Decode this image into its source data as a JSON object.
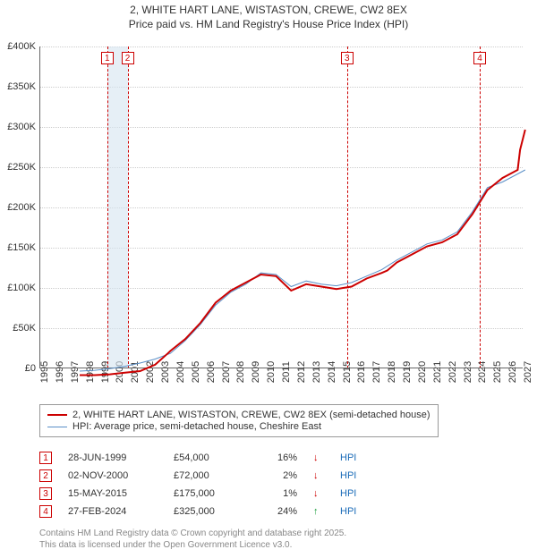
{
  "title_line1": "2, WHITE HART LANE, WISTASTON, CREWE, CW2 8EX",
  "title_line2": "Price paid vs. HM Land Registry's House Price Index (HPI)",
  "chart": {
    "type": "line",
    "background_color": "#ffffff",
    "grid_color": "#cccccc",
    "axis_color": "#666666",
    "xlim": [
      1995,
      2027
    ],
    "ylim": [
      0,
      400000
    ],
    "ytick_step": 50000,
    "ytick_labels": [
      "£0",
      "£50K",
      "£100K",
      "£150K",
      "£200K",
      "£250K",
      "£300K",
      "£350K",
      "£400K"
    ],
    "xtick_years": [
      1995,
      1996,
      1997,
      1998,
      1999,
      2000,
      2001,
      2002,
      2003,
      2004,
      2005,
      2006,
      2007,
      2008,
      2009,
      2010,
      2011,
      2012,
      2013,
      2014,
      2015,
      2016,
      2017,
      2018,
      2019,
      2020,
      2021,
      2022,
      2023,
      2024,
      2025,
      2026,
      2027
    ],
    "band": {
      "start": 1999.49,
      "end": 2000.84,
      "color": "#d6e4f0"
    },
    "markers": [
      {
        "n": "1",
        "x": 1999.49,
        "color": "#cc0000"
      },
      {
        "n": "2",
        "x": 2000.84,
        "color": "#cc0000"
      },
      {
        "n": "3",
        "x": 2015.37,
        "color": "#cc0000"
      },
      {
        "n": "4",
        "x": 2024.16,
        "color": "#cc0000"
      }
    ],
    "series_price": {
      "label": "2, WHITE HART LANE, WISTASTON, CREWE, CW2 8EX (semi-detached house)",
      "color": "#cc0000",
      "width": 2,
      "points": [
        [
          1995,
          45000
        ],
        [
          1996,
          45000
        ],
        [
          1997,
          46000
        ],
        [
          1998,
          48000
        ],
        [
          1999,
          50000
        ],
        [
          1999.49,
          54000
        ],
        [
          2000,
          58000
        ],
        [
          2000.84,
          72000
        ],
        [
          2001,
          75000
        ],
        [
          2002,
          90000
        ],
        [
          2003,
          110000
        ],
        [
          2004,
          135000
        ],
        [
          2005,
          150000
        ],
        [
          2006,
          160000
        ],
        [
          2007,
          170000
        ],
        [
          2008,
          168000
        ],
        [
          2009,
          150000
        ],
        [
          2010,
          158000
        ],
        [
          2011,
          155000
        ],
        [
          2012,
          152000
        ],
        [
          2013,
          155000
        ],
        [
          2014,
          165000
        ],
        [
          2015,
          172000
        ],
        [
          2015.37,
          175000
        ],
        [
          2016,
          185000
        ],
        [
          2017,
          195000
        ],
        [
          2018,
          205000
        ],
        [
          2019,
          210000
        ],
        [
          2020,
          220000
        ],
        [
          2021,
          245000
        ],
        [
          2022,
          275000
        ],
        [
          2023,
          290000
        ],
        [
          2024,
          300000
        ],
        [
          2024.16,
          325000
        ],
        [
          2024.5,
          350000
        ]
      ]
    },
    "series_hpi": {
      "label": "HPI: Average price, semi-detached house, Cheshire East",
      "color": "#5a8fc7",
      "width": 1,
      "points": [
        [
          1995,
          50000
        ],
        [
          1996,
          51000
        ],
        [
          1997,
          53000
        ],
        [
          1998,
          56000
        ],
        [
          1999,
          60000
        ],
        [
          2000,
          65000
        ],
        [
          2001,
          72000
        ],
        [
          2002,
          88000
        ],
        [
          2003,
          108000
        ],
        [
          2004,
          132000
        ],
        [
          2005,
          148000
        ],
        [
          2006,
          158000
        ],
        [
          2007,
          172000
        ],
        [
          2008,
          170000
        ],
        [
          2009,
          155000
        ],
        [
          2010,
          162000
        ],
        [
          2011,
          158000
        ],
        [
          2012,
          156000
        ],
        [
          2013,
          160000
        ],
        [
          2014,
          168000
        ],
        [
          2015,
          176000
        ],
        [
          2016,
          188000
        ],
        [
          2017,
          198000
        ],
        [
          2018,
          208000
        ],
        [
          2019,
          213000
        ],
        [
          2020,
          223000
        ],
        [
          2021,
          248000
        ],
        [
          2022,
          278000
        ],
        [
          2023,
          285000
        ],
        [
          2024,
          295000
        ],
        [
          2024.5,
          300000
        ]
      ]
    }
  },
  "legend": {
    "border_color": "#999999"
  },
  "table": {
    "hpi_label": "HPI",
    "hpi_color": "#1a6bb8",
    "arrow_up": "↑",
    "arrow_down": "↓",
    "arrow_up_color": "#1a9c3c",
    "arrow_down_color": "#cc0000",
    "rows": [
      {
        "n": "1",
        "date": "28-JUN-1999",
        "price": "£54,000",
        "pct": "16%",
        "dir": "down"
      },
      {
        "n": "2",
        "date": "02-NOV-2000",
        "price": "£72,000",
        "pct": "2%",
        "dir": "down"
      },
      {
        "n": "3",
        "date": "15-MAY-2015",
        "price": "£175,000",
        "pct": "1%",
        "dir": "down"
      },
      {
        "n": "4",
        "date": "27-FEB-2024",
        "price": "£325,000",
        "pct": "24%",
        "dir": "up"
      }
    ]
  },
  "footer_line1": "Contains HM Land Registry data © Crown copyright and database right 2025.",
  "footer_line2": "This data is licensed under the Open Government Licence v3.0."
}
